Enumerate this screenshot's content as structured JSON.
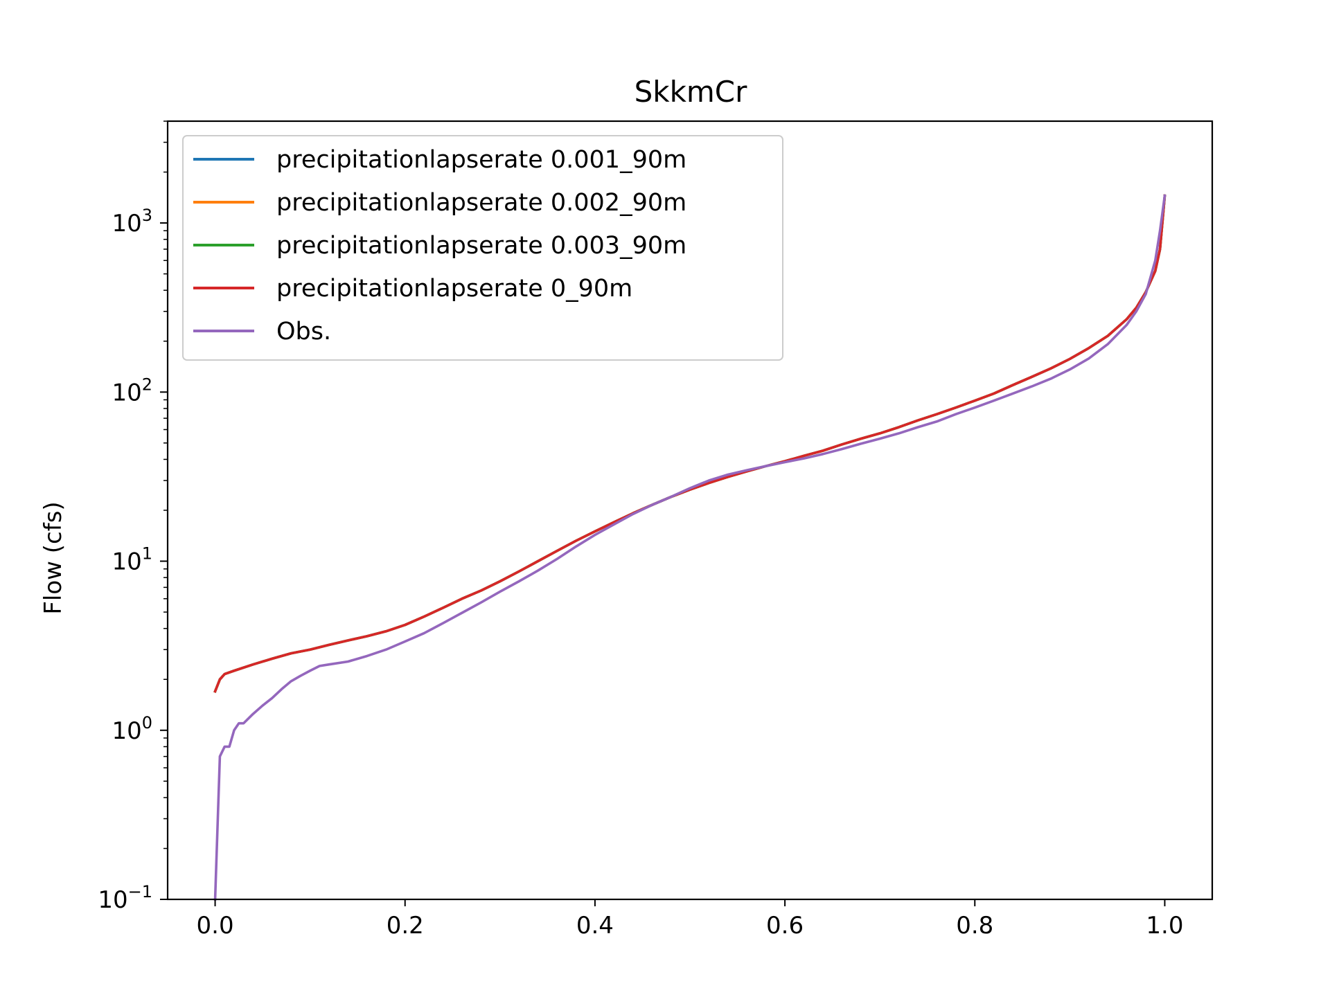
{
  "chart_data": {
    "type": "line",
    "title": "SkkmCr",
    "xlabel": "",
    "ylabel": "Flow (cfs)",
    "yscale": "log",
    "xlim": [
      -0.05,
      1.05
    ],
    "ylim": [
      0.1,
      4000
    ],
    "x_ticks": [
      0.0,
      0.2,
      0.4,
      0.6,
      0.8,
      1.0
    ],
    "x_tick_labels": [
      "0.0",
      "0.2",
      "0.4",
      "0.6",
      "0.8",
      "1.0"
    ],
    "y_ticks": [
      {
        "value": 0.1,
        "base": "10",
        "exp": "−1"
      },
      {
        "value": 1,
        "base": "10",
        "exp": "0"
      },
      {
        "value": 10,
        "base": "10",
        "exp": "1"
      },
      {
        "value": 100,
        "base": "10",
        "exp": "2"
      },
      {
        "value": 1000,
        "base": "10",
        "exp": "3"
      }
    ],
    "grid": false,
    "legend_position": "top-left",
    "series": [
      {
        "name": "precipitationlapserate 0.001_90m",
        "color": "#1f77b4",
        "x": [
          0.0,
          0.005,
          0.01,
          0.02,
          0.04,
          0.06,
          0.08,
          0.1,
          0.12,
          0.14,
          0.16,
          0.18,
          0.2,
          0.22,
          0.24,
          0.26,
          0.28,
          0.3,
          0.32,
          0.34,
          0.36,
          0.38,
          0.4,
          0.42,
          0.44,
          0.46,
          0.48,
          0.5,
          0.52,
          0.54,
          0.56,
          0.58,
          0.6,
          0.62,
          0.64,
          0.66,
          0.68,
          0.7,
          0.72,
          0.74,
          0.76,
          0.78,
          0.8,
          0.82,
          0.84,
          0.86,
          0.88,
          0.9,
          0.92,
          0.94,
          0.96,
          0.97,
          0.98,
          0.99,
          0.995,
          1.0
        ],
        "y": [
          1.7,
          2.0,
          2.15,
          2.25,
          2.45,
          2.65,
          2.85,
          3.0,
          3.2,
          3.4,
          3.6,
          3.85,
          4.2,
          4.7,
          5.3,
          6.0,
          6.7,
          7.6,
          8.7,
          10.0,
          11.5,
          13.2,
          15.0,
          17.0,
          19.2,
          21.5,
          24.0,
          26.5,
          29.0,
          31.5,
          34.0,
          36.5,
          39.0,
          42.0,
          45.0,
          49.0,
          53.0,
          57.0,
          62.0,
          68.0,
          74.0,
          81.0,
          89.0,
          98.0,
          110.0,
          123.0,
          138.0,
          157.0,
          182.0,
          215.0,
          270.0,
          315.0,
          390.0,
          520.0,
          700.0,
          1450.0
        ]
      },
      {
        "name": "precipitationlapserate 0.002_90m",
        "color": "#ff7f0e",
        "x": [
          0.0,
          0.005,
          0.01,
          0.02,
          0.04,
          0.06,
          0.08,
          0.1,
          0.12,
          0.14,
          0.16,
          0.18,
          0.2,
          0.22,
          0.24,
          0.26,
          0.28,
          0.3,
          0.32,
          0.34,
          0.36,
          0.38,
          0.4,
          0.42,
          0.44,
          0.46,
          0.48,
          0.5,
          0.52,
          0.54,
          0.56,
          0.58,
          0.6,
          0.62,
          0.64,
          0.66,
          0.68,
          0.7,
          0.72,
          0.74,
          0.76,
          0.78,
          0.8,
          0.82,
          0.84,
          0.86,
          0.88,
          0.9,
          0.92,
          0.94,
          0.96,
          0.97,
          0.98,
          0.99,
          0.995,
          1.0
        ],
        "y": [
          1.7,
          2.0,
          2.15,
          2.25,
          2.45,
          2.65,
          2.85,
          3.0,
          3.2,
          3.4,
          3.6,
          3.85,
          4.2,
          4.7,
          5.3,
          6.0,
          6.7,
          7.6,
          8.7,
          10.0,
          11.5,
          13.2,
          15.0,
          17.0,
          19.2,
          21.5,
          24.0,
          26.5,
          29.0,
          31.5,
          34.0,
          36.5,
          39.0,
          42.0,
          45.0,
          49.0,
          53.0,
          57.0,
          62.0,
          68.0,
          74.0,
          81.0,
          89.0,
          98.0,
          110.0,
          123.0,
          138.0,
          157.0,
          182.0,
          215.0,
          270.0,
          315.0,
          390.0,
          520.0,
          700.0,
          1450.0
        ]
      },
      {
        "name": "precipitationlapserate 0.003_90m",
        "color": "#2ca02c",
        "x": [
          0.0,
          0.005,
          0.01,
          0.02,
          0.04,
          0.06,
          0.08,
          0.1,
          0.12,
          0.14,
          0.16,
          0.18,
          0.2,
          0.22,
          0.24,
          0.26,
          0.28,
          0.3,
          0.32,
          0.34,
          0.36,
          0.38,
          0.4,
          0.42,
          0.44,
          0.46,
          0.48,
          0.5,
          0.52,
          0.54,
          0.56,
          0.58,
          0.6,
          0.62,
          0.64,
          0.66,
          0.68,
          0.7,
          0.72,
          0.74,
          0.76,
          0.78,
          0.8,
          0.82,
          0.84,
          0.86,
          0.88,
          0.9,
          0.92,
          0.94,
          0.96,
          0.97,
          0.98,
          0.99,
          0.995,
          1.0
        ],
        "y": [
          1.7,
          2.0,
          2.15,
          2.25,
          2.45,
          2.65,
          2.85,
          3.0,
          3.2,
          3.4,
          3.6,
          3.85,
          4.2,
          4.7,
          5.3,
          6.0,
          6.7,
          7.6,
          8.7,
          10.0,
          11.5,
          13.2,
          15.0,
          17.0,
          19.2,
          21.5,
          24.0,
          26.5,
          29.0,
          31.5,
          34.0,
          36.5,
          39.0,
          42.0,
          45.0,
          49.0,
          53.0,
          57.0,
          62.0,
          68.0,
          74.0,
          81.0,
          89.0,
          98.0,
          110.0,
          123.0,
          138.0,
          157.0,
          182.0,
          215.0,
          270.0,
          315.0,
          390.0,
          520.0,
          700.0,
          1450.0
        ]
      },
      {
        "name": "precipitationlapserate 0_90m",
        "color": "#d62728",
        "x": [
          0.0,
          0.005,
          0.01,
          0.02,
          0.04,
          0.06,
          0.08,
          0.1,
          0.12,
          0.14,
          0.16,
          0.18,
          0.2,
          0.22,
          0.24,
          0.26,
          0.28,
          0.3,
          0.32,
          0.34,
          0.36,
          0.38,
          0.4,
          0.42,
          0.44,
          0.46,
          0.48,
          0.5,
          0.52,
          0.54,
          0.56,
          0.58,
          0.6,
          0.62,
          0.64,
          0.66,
          0.68,
          0.7,
          0.72,
          0.74,
          0.76,
          0.78,
          0.8,
          0.82,
          0.84,
          0.86,
          0.88,
          0.9,
          0.92,
          0.94,
          0.96,
          0.97,
          0.98,
          0.99,
          0.995,
          1.0
        ],
        "y": [
          1.7,
          2.0,
          2.15,
          2.25,
          2.45,
          2.65,
          2.85,
          3.0,
          3.2,
          3.4,
          3.6,
          3.85,
          4.2,
          4.7,
          5.3,
          6.0,
          6.7,
          7.6,
          8.7,
          10.0,
          11.5,
          13.2,
          15.0,
          17.0,
          19.2,
          21.5,
          24.0,
          26.5,
          29.0,
          31.5,
          34.0,
          36.5,
          39.0,
          42.0,
          45.0,
          49.0,
          53.0,
          57.0,
          62.0,
          68.0,
          74.0,
          81.0,
          89.0,
          98.0,
          110.0,
          123.0,
          138.0,
          157.0,
          182.0,
          215.0,
          270.0,
          315.0,
          390.0,
          520.0,
          700.0,
          1450.0
        ]
      },
      {
        "name": "Obs.",
        "color": "#9467bd",
        "x": [
          0.0,
          0.005,
          0.01,
          0.015,
          0.02,
          0.025,
          0.03,
          0.04,
          0.05,
          0.06,
          0.07,
          0.08,
          0.09,
          0.1,
          0.11,
          0.12,
          0.14,
          0.16,
          0.18,
          0.2,
          0.22,
          0.24,
          0.26,
          0.28,
          0.3,
          0.32,
          0.34,
          0.36,
          0.38,
          0.4,
          0.42,
          0.44,
          0.46,
          0.48,
          0.5,
          0.52,
          0.54,
          0.56,
          0.58,
          0.6,
          0.62,
          0.64,
          0.66,
          0.68,
          0.7,
          0.72,
          0.74,
          0.76,
          0.78,
          0.8,
          0.82,
          0.84,
          0.86,
          0.88,
          0.9,
          0.92,
          0.94,
          0.96,
          0.97,
          0.98,
          0.99,
          0.995,
          1.0
        ],
        "y": [
          0.1,
          0.7,
          0.8,
          0.8,
          1.0,
          1.1,
          1.1,
          1.25,
          1.4,
          1.55,
          1.75,
          1.95,
          2.1,
          2.25,
          2.4,
          2.45,
          2.55,
          2.75,
          3.0,
          3.35,
          3.75,
          4.3,
          4.95,
          5.7,
          6.6,
          7.6,
          8.8,
          10.3,
          12.2,
          14.3,
          16.5,
          19.0,
          21.5,
          24.0,
          27.0,
          30.0,
          32.5,
          34.5,
          36.5,
          38.5,
          40.5,
          43.0,
          46.0,
          49.5,
          53.0,
          57.0,
          62.0,
          67.0,
          74.0,
          81.0,
          89.0,
          98.0,
          108.0,
          120.0,
          136.0,
          158.0,
          192.0,
          250.0,
          300.0,
          380.0,
          600.0,
          900.0,
          1450.0
        ]
      }
    ]
  }
}
